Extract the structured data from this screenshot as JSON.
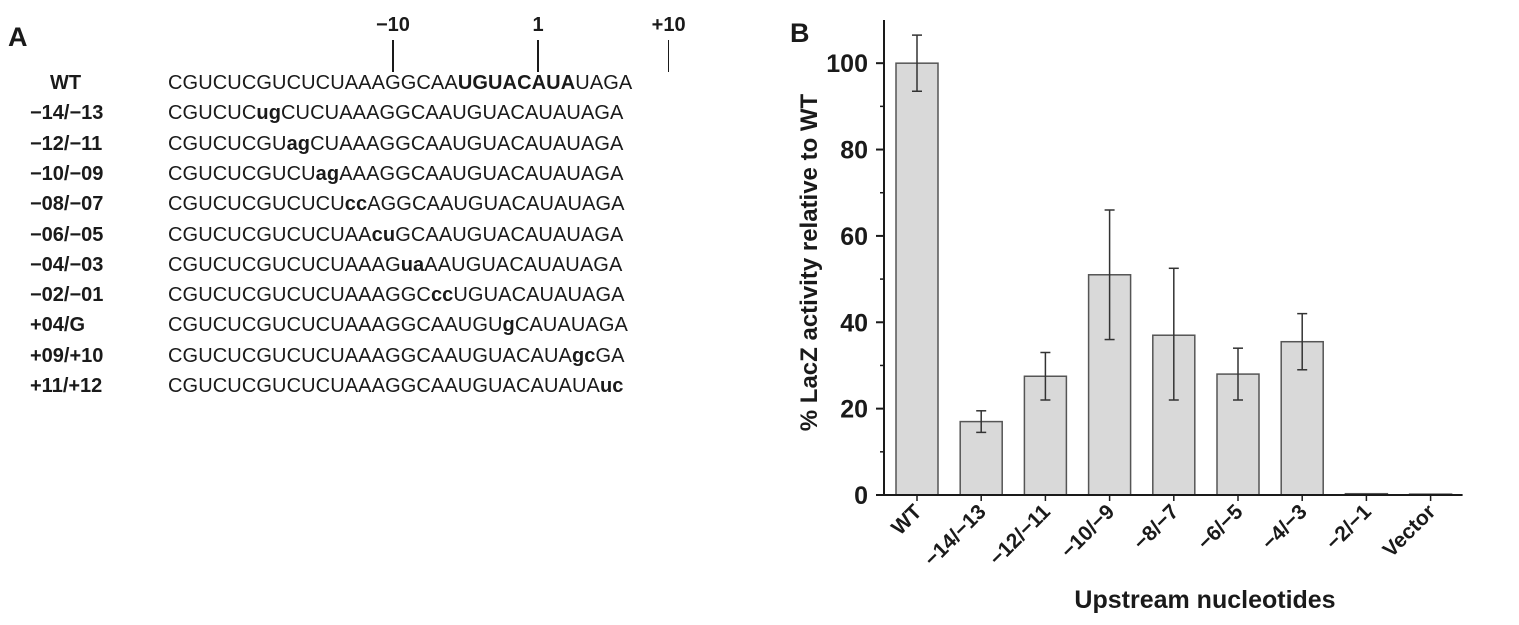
{
  "panel_a": {
    "letter": "A",
    "positions": [
      {
        "label": "−10",
        "col": 16
      },
      {
        "label": "1",
        "col": 26
      },
      {
        "label": "+10",
        "col": 35
      }
    ],
    "rows": [
      {
        "label": "WT",
        "before": "CGUCUCGUCUCUAAAGGCAA",
        "bold": "UGUACAUA",
        "after": "UAGA"
      },
      {
        "label": "−14/−13",
        "before": "CGUCUC",
        "bold": "ug",
        "after": "CUCUAAAGGCAAUGUACAUAUAGA"
      },
      {
        "label": "−12/−11",
        "before": "CGUCUCGU",
        "bold": "ag",
        "after": "CUAAAGGCAAUGUACAUAUAGA"
      },
      {
        "label": "−10/−09",
        "before": "CGUCUCGUCU",
        "bold": "ag",
        "after": "AAAGGCAAUGUACAUAUAGA"
      },
      {
        "label": "−08/−07",
        "before": "CGUCUCGUCUCU",
        "bold": "cc",
        "after": "AGGCAAUGUACAUAUAGA"
      },
      {
        "label": "−06/−05",
        "before": "CGUCUCGUCUCUAA",
        "bold": "cu",
        "after": "GCAAUGUACAUAUAGA"
      },
      {
        "label": "−04/−03",
        "before": "CGUCUCGUCUCUAAAG",
        "bold": "ua",
        "after": "AAUGUACAUAUAGA"
      },
      {
        "label": "−02/−01",
        "before": "CGUCUCGUCUCUAAAGGC",
        "bold": "cc",
        "after": "UGUACAUAUAGA"
      },
      {
        "label": "+04/G",
        "before": "CGUCUCGUCUCUAAAGGCAAUGU",
        "bold": "g",
        "after": "CAUAUAGA"
      },
      {
        "label": "+09/+10",
        "before": "CGUCUCGUCUCUAAAGGCAAUGUACAUA",
        "bold": "gc",
        "after": "GA"
      },
      {
        "label": "+11/+12",
        "before": "CGUCUCGUCUCUAAAGGCAAUGUACAUAUA",
        "bold": "uc",
        "after": ""
      }
    ]
  },
  "chart_data": {
    "type": "bar",
    "panel_letter": "B",
    "categories": [
      "WT",
      "−14/−13",
      "−12/−11",
      "−10/−9",
      "−8/−7",
      "−6/−5",
      "−4/−3",
      "−2/−1",
      "Vector"
    ],
    "values": [
      100,
      17,
      27.5,
      51,
      37,
      28,
      35.5,
      0.3,
      0.2
    ],
    "error_low": [
      93.5,
      14.5,
      22,
      36,
      22,
      22,
      29,
      0.3,
      0.2
    ],
    "error_high": [
      106.5,
      19.5,
      33,
      66,
      52.5,
      34,
      42,
      0.3,
      0.2
    ],
    "xlabel": "Upstream nucleotides",
    "ylabel": "% LacZ activity relative to WT",
    "ylim": [
      0,
      110
    ],
    "yticks": [
      0,
      20,
      40,
      60,
      80,
      100
    ],
    "yticks_minor": [
      10,
      30,
      50,
      70,
      90
    ],
    "grid": false,
    "bar_color": "#d9d9d9",
    "edge_color": "#555555"
  }
}
